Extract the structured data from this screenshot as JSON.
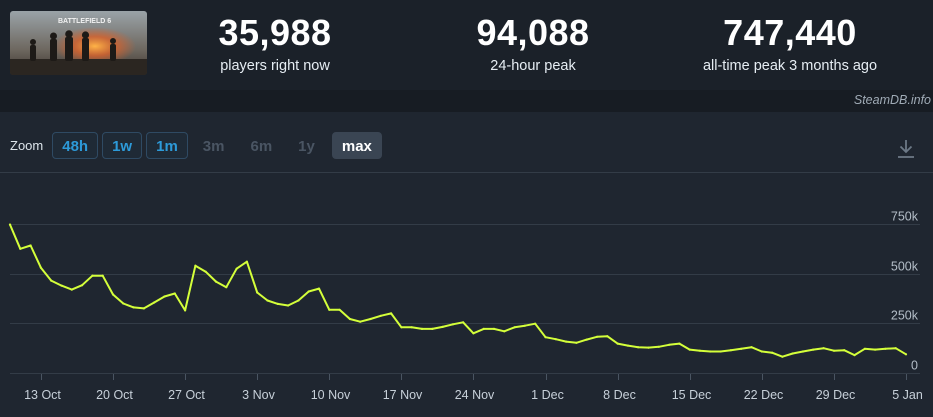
{
  "stats": [
    {
      "value": "35,988",
      "label": "players right now"
    },
    {
      "value": "94,088",
      "label": "24-hour peak"
    },
    {
      "value": "747,440",
      "label": "all-time peak 3 months ago"
    }
  ],
  "game": {
    "thumbnail_text": "BATTLEFIELD 6"
  },
  "brand": "SteamDB.info",
  "zoom": {
    "label": "Zoom",
    "options": [
      {
        "label": "48h",
        "state": "enabled"
      },
      {
        "label": "1w",
        "state": "enabled"
      },
      {
        "label": "1m",
        "state": "enabled"
      },
      {
        "label": "3m",
        "state": "disabled"
      },
      {
        "label": "6m",
        "state": "disabled"
      },
      {
        "label": "1y",
        "state": "disabled"
      },
      {
        "label": "max",
        "state": "selected"
      }
    ]
  },
  "download_icon": "download-icon",
  "colors": {
    "line": "#d4ff3a",
    "background": "#1f2630",
    "grid": "#333c47",
    "accent": "#2d9ad9"
  },
  "chart_data": {
    "type": "line",
    "title": "",
    "xlabel": "",
    "ylabel": "",
    "x_range": [
      "2025-10-10",
      "2026-01-05"
    ],
    "ylim": [
      0,
      750000
    ],
    "yticks": [
      0,
      250000,
      500000,
      750000
    ],
    "ytick_labels": [
      "0",
      "250k",
      "500k",
      "750k"
    ],
    "xticks": [
      "2025-10-13",
      "2025-10-20",
      "2025-10-27",
      "2025-11-03",
      "2025-11-10",
      "2025-11-17",
      "2025-11-24",
      "2025-12-01",
      "2025-12-08",
      "2025-12-15",
      "2025-12-22",
      "2025-12-29",
      "2026-01-05"
    ],
    "xtick_labels": [
      "13 Oct",
      "20 Oct",
      "27 Oct",
      "3 Nov",
      "10 Nov",
      "17 Nov",
      "24 Nov",
      "1 Dec",
      "8 Dec",
      "15 Dec",
      "22 Dec",
      "29 Dec",
      "5 Jan"
    ],
    "grid": true,
    "series": [
      {
        "values": [
          [
            "2025-10-10",
            747000
          ],
          [
            "2025-10-11",
            625000
          ],
          [
            "2025-10-12",
            642000
          ],
          [
            "2025-10-13",
            530000
          ],
          [
            "2025-10-14",
            465000
          ],
          [
            "2025-10-15",
            440000
          ],
          [
            "2025-10-16",
            420000
          ],
          [
            "2025-10-17",
            442000
          ],
          [
            "2025-10-18",
            490000
          ],
          [
            "2025-10-19",
            490000
          ],
          [
            "2025-10-20",
            395000
          ],
          [
            "2025-10-21",
            350000
          ],
          [
            "2025-10-22",
            330000
          ],
          [
            "2025-10-23",
            325000
          ],
          [
            "2025-10-24",
            355000
          ],
          [
            "2025-10-25",
            385000
          ],
          [
            "2025-10-26",
            400000
          ],
          [
            "2025-10-27",
            315000
          ],
          [
            "2025-10-28",
            540000
          ],
          [
            "2025-10-29",
            510000
          ],
          [
            "2025-10-30",
            460000
          ],
          [
            "2025-10-31",
            432000
          ],
          [
            "2025-11-01",
            525000
          ],
          [
            "2025-11-02",
            560000
          ],
          [
            "2025-11-03",
            405000
          ],
          [
            "2025-11-04",
            365000
          ],
          [
            "2025-11-05",
            348000
          ],
          [
            "2025-11-06",
            340000
          ],
          [
            "2025-11-07",
            365000
          ],
          [
            "2025-11-08",
            410000
          ],
          [
            "2025-11-09",
            425000
          ],
          [
            "2025-11-10",
            318000
          ],
          [
            "2025-11-11",
            318000
          ],
          [
            "2025-11-12",
            272000
          ],
          [
            "2025-11-13",
            258000
          ],
          [
            "2025-11-14",
            272000
          ],
          [
            "2025-11-15",
            288000
          ],
          [
            "2025-11-16",
            300000
          ],
          [
            "2025-11-17",
            230000
          ],
          [
            "2025-11-18",
            230000
          ],
          [
            "2025-11-19",
            222000
          ],
          [
            "2025-11-20",
            222000
          ],
          [
            "2025-11-21",
            232000
          ],
          [
            "2025-11-22",
            245000
          ],
          [
            "2025-11-23",
            255000
          ],
          [
            "2025-11-24",
            200000
          ],
          [
            "2025-11-25",
            222000
          ],
          [
            "2025-11-26",
            222000
          ],
          [
            "2025-11-27",
            210000
          ],
          [
            "2025-11-28",
            230000
          ],
          [
            "2025-11-29",
            238000
          ],
          [
            "2025-11-30",
            248000
          ],
          [
            "2025-12-01",
            180000
          ],
          [
            "2025-12-02",
            170000
          ],
          [
            "2025-12-03",
            158000
          ],
          [
            "2025-12-04",
            152000
          ],
          [
            "2025-12-05",
            168000
          ],
          [
            "2025-12-06",
            182000
          ],
          [
            "2025-12-07",
            185000
          ],
          [
            "2025-12-08",
            148000
          ],
          [
            "2025-12-09",
            138000
          ],
          [
            "2025-12-10",
            130000
          ],
          [
            "2025-12-11",
            128000
          ],
          [
            "2025-12-12",
            132000
          ],
          [
            "2025-12-13",
            142000
          ],
          [
            "2025-12-14",
            148000
          ],
          [
            "2025-12-15",
            118000
          ],
          [
            "2025-12-16",
            112000
          ],
          [
            "2025-12-17",
            108000
          ],
          [
            "2025-12-18",
            108000
          ],
          [
            "2025-12-19",
            115000
          ],
          [
            "2025-12-20",
            122000
          ],
          [
            "2025-12-21",
            130000
          ],
          [
            "2025-12-22",
            108000
          ],
          [
            "2025-12-23",
            102000
          ],
          [
            "2025-12-24",
            82000
          ],
          [
            "2025-12-25",
            98000
          ],
          [
            "2025-12-26",
            108000
          ],
          [
            "2025-12-27",
            118000
          ],
          [
            "2025-12-28",
            125000
          ],
          [
            "2025-12-29",
            112000
          ],
          [
            "2025-12-30",
            115000
          ],
          [
            "2025-12-31",
            90000
          ],
          [
            "2026-01-01",
            122000
          ],
          [
            "2026-01-02",
            118000
          ],
          [
            "2026-01-03",
            122000
          ],
          [
            "2026-01-04",
            125000
          ],
          [
            "2026-01-05",
            94000
          ]
        ]
      }
    ]
  }
}
